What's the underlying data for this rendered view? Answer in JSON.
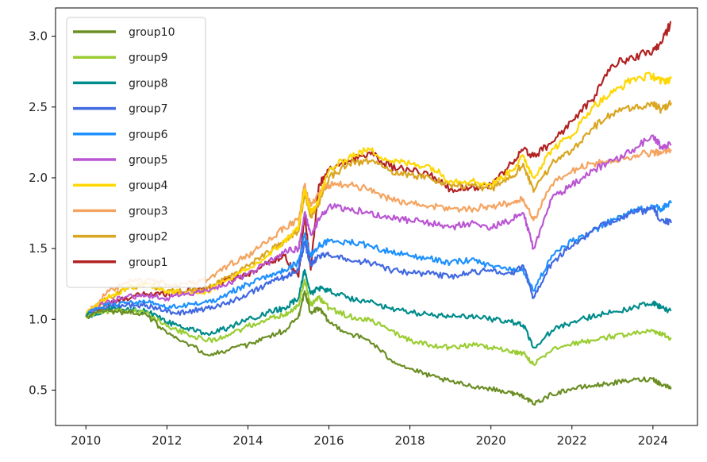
{
  "chart_data": {
    "type": "line",
    "title": "",
    "xlabel": "",
    "ylabel": "",
    "xlim": [
      2009.25,
      2025.1
    ],
    "ylim": [
      0.25,
      3.2
    ],
    "xticks": [
      2010,
      2012,
      2014,
      2016,
      2018,
      2020,
      2022,
      2024
    ],
    "yticks": [
      0.5,
      1.0,
      1.5,
      2.0,
      2.5,
      3.0
    ],
    "ytick_labels": [
      "0.5",
      "1.0",
      "1.5",
      "2.0",
      "2.5",
      "3.0"
    ],
    "grid": false,
    "legend_position": "upper-left",
    "x": [
      2010.0,
      2010.5,
      2011.0,
      2011.5,
      2012.0,
      2012.5,
      2013.0,
      2013.5,
      2014.0,
      2014.5,
      2014.9,
      2015.25,
      2015.4,
      2015.55,
      2015.75,
      2016.0,
      2016.5,
      2017.0,
      2017.5,
      2018.0,
      2018.5,
      2019.0,
      2019.5,
      2020.0,
      2020.5,
      2020.8,
      2021.05,
      2021.5,
      2022.0,
      2022.5,
      2023.0,
      2023.5,
      2024.0,
      2024.2,
      2024.45
    ],
    "series": [
      {
        "name": "group10",
        "color": "#6b8e23",
        "values": [
          1.02,
          1.06,
          1.05,
          1.03,
          0.9,
          0.83,
          0.75,
          0.78,
          0.82,
          0.88,
          0.92,
          1.02,
          1.2,
          1.05,
          1.08,
          0.98,
          0.9,
          0.85,
          0.72,
          0.65,
          0.6,
          0.56,
          0.53,
          0.51,
          0.48,
          0.46,
          0.4,
          0.47,
          0.51,
          0.53,
          0.55,
          0.57,
          0.58,
          0.54,
          0.52
        ]
      },
      {
        "name": "group9",
        "color": "#9acd32",
        "values": [
          1.02,
          1.06,
          1.06,
          1.05,
          0.95,
          0.9,
          0.85,
          0.88,
          0.95,
          1.0,
          1.03,
          1.1,
          1.28,
          1.1,
          1.15,
          1.08,
          1.02,
          1.0,
          0.92,
          0.85,
          0.82,
          0.8,
          0.82,
          0.8,
          0.77,
          0.76,
          0.68,
          0.78,
          0.83,
          0.85,
          0.88,
          0.9,
          0.92,
          0.9,
          0.86
        ]
      },
      {
        "name": "group8",
        "color": "#008b8b",
        "values": [
          1.02,
          1.07,
          1.07,
          1.06,
          0.98,
          0.94,
          0.9,
          0.94,
          1.0,
          1.05,
          1.08,
          1.15,
          1.35,
          1.18,
          1.22,
          1.2,
          1.15,
          1.12,
          1.08,
          1.05,
          1.03,
          1.02,
          1.02,
          1.0,
          0.98,
          0.96,
          0.8,
          0.92,
          0.98,
          1.02,
          1.05,
          1.08,
          1.12,
          1.08,
          1.06
        ]
      },
      {
        "name": "group7",
        "color": "#4169e1",
        "values": [
          1.02,
          1.08,
          1.1,
          1.1,
          1.05,
          1.05,
          1.08,
          1.12,
          1.18,
          1.25,
          1.3,
          1.35,
          1.55,
          1.38,
          1.45,
          1.45,
          1.42,
          1.4,
          1.35,
          1.33,
          1.32,
          1.3,
          1.33,
          1.35,
          1.32,
          1.38,
          1.15,
          1.4,
          1.52,
          1.62,
          1.7,
          1.75,
          1.78,
          1.7,
          1.68
        ]
      },
      {
        "name": "group6",
        "color": "#1e90ff",
        "values": [
          1.03,
          1.1,
          1.12,
          1.12,
          1.08,
          1.1,
          1.12,
          1.18,
          1.25,
          1.3,
          1.35,
          1.4,
          1.6,
          1.45,
          1.52,
          1.55,
          1.55,
          1.52,
          1.48,
          1.45,
          1.43,
          1.4,
          1.42,
          1.38,
          1.35,
          1.35,
          1.2,
          1.45,
          1.55,
          1.62,
          1.7,
          1.76,
          1.8,
          1.78,
          1.82
        ]
      },
      {
        "name": "group5",
        "color": "#ba55d3",
        "values": [
          1.03,
          1.12,
          1.16,
          1.17,
          1.15,
          1.18,
          1.2,
          1.25,
          1.32,
          1.4,
          1.48,
          1.5,
          1.75,
          1.6,
          1.7,
          1.8,
          1.78,
          1.75,
          1.72,
          1.7,
          1.68,
          1.65,
          1.68,
          1.65,
          1.7,
          1.75,
          1.5,
          1.85,
          1.95,
          2.05,
          2.12,
          2.2,
          2.3,
          2.22,
          2.23
        ]
      },
      {
        "name": "group4",
        "color": "#ffd700",
        "values": [
          1.04,
          1.15,
          1.22,
          1.25,
          1.2,
          1.18,
          1.2,
          1.28,
          1.35,
          1.45,
          1.55,
          1.65,
          1.92,
          1.75,
          1.85,
          2.05,
          2.15,
          2.2,
          2.12,
          2.1,
          2.08,
          1.98,
          1.98,
          1.95,
          2.05,
          2.15,
          2.0,
          2.2,
          2.3,
          2.5,
          2.6,
          2.7,
          2.72,
          2.68,
          2.7
        ]
      },
      {
        "name": "group3",
        "color": "#f4a460",
        "values": [
          1.04,
          1.18,
          1.26,
          1.28,
          1.25,
          1.25,
          1.28,
          1.38,
          1.45,
          1.55,
          1.65,
          1.7,
          1.95,
          1.8,
          1.88,
          1.95,
          1.95,
          1.92,
          1.85,
          1.82,
          1.8,
          1.78,
          1.78,
          1.8,
          1.82,
          1.85,
          1.7,
          1.95,
          2.05,
          2.1,
          2.12,
          2.15,
          2.18,
          2.17,
          2.2
        ]
      },
      {
        "name": "group2",
        "color": "#daa520",
        "values": [
          1.03,
          1.14,
          1.22,
          1.25,
          1.2,
          1.2,
          1.22,
          1.3,
          1.38,
          1.48,
          1.55,
          1.62,
          1.9,
          1.72,
          1.82,
          2.0,
          2.1,
          2.12,
          2.05,
          2.02,
          2.0,
          1.95,
          1.95,
          1.92,
          2.0,
          2.1,
          1.9,
          2.1,
          2.2,
          2.35,
          2.45,
          2.5,
          2.52,
          2.48,
          2.53
        ]
      },
      {
        "name": "group1",
        "color": "#b22222",
        "values": [
          1.02,
          1.1,
          1.15,
          1.18,
          1.18,
          1.2,
          1.22,
          1.28,
          1.32,
          1.4,
          1.45,
          1.3,
          1.75,
          1.35,
          1.95,
          2.05,
          2.12,
          2.18,
          2.08,
          2.05,
          2.02,
          1.92,
          1.93,
          1.95,
          2.1,
          2.2,
          2.15,
          2.25,
          2.4,
          2.55,
          2.8,
          2.85,
          2.9,
          2.95,
          3.1
        ]
      }
    ]
  }
}
